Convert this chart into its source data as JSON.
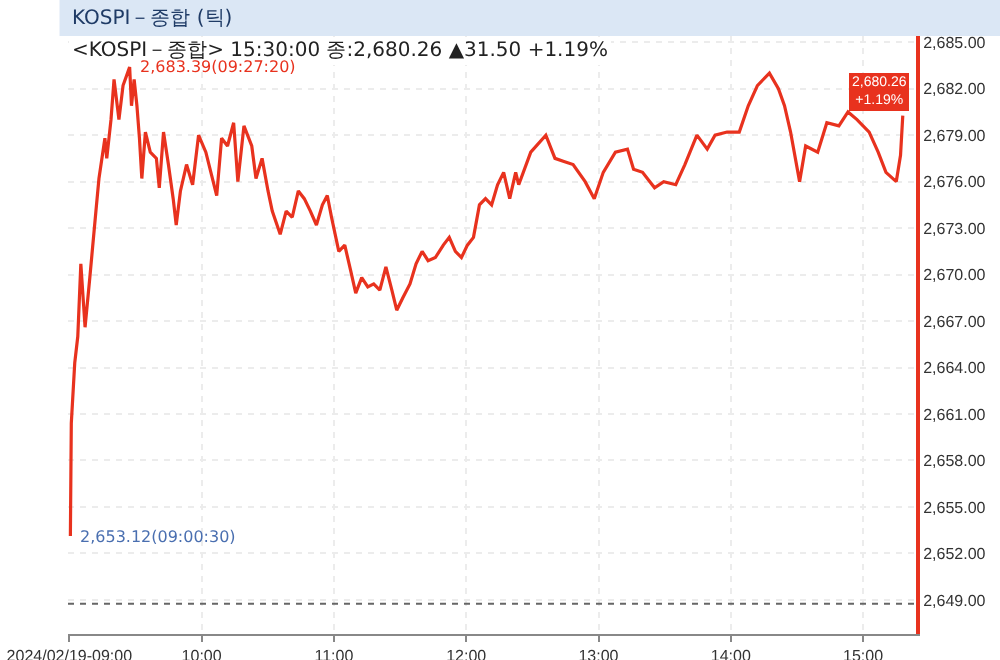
{
  "chart_data": {
    "type": "line",
    "title": "KOSPI－종합 (틱)",
    "subtitle": "<KOSPI－종합> 15:30:00 종:2,680.26 ▲31.50 +1.19%",
    "xlim": [
      8.99,
      15.4
    ],
    "ylim": [
      2646.8,
      2685.4
    ],
    "xticks": [
      {
        "value": 9,
        "label": "2024/02/19-09:00"
      },
      {
        "value": 10,
        "label": "10:00"
      },
      {
        "value": 11,
        "label": "11:00"
      },
      {
        "value": 12,
        "label": "12:00"
      },
      {
        "value": 13,
        "label": "13:00"
      },
      {
        "value": 14,
        "label": "14:00"
      },
      {
        "value": 15,
        "label": "15:00"
      }
    ],
    "yticks": [
      {
        "value": 2649,
        "label": "2,649.00"
      },
      {
        "value": 2652,
        "label": "2,652.00"
      },
      {
        "value": 2655,
        "label": "2,655.00"
      },
      {
        "value": 2658,
        "label": "2,658.00"
      },
      {
        "value": 2661,
        "label": "2,661.00"
      },
      {
        "value": 2664,
        "label": "2,664.00"
      },
      {
        "value": 2667,
        "label": "2,667.00"
      },
      {
        "value": 2670,
        "label": "2,670.00"
      },
      {
        "value": 2673,
        "label": "2,673.00"
      },
      {
        "value": 2676,
        "label": "2,676.00"
      },
      {
        "value": 2679,
        "label": "2,679.00"
      },
      {
        "value": 2682,
        "label": "2,682.00"
      },
      {
        "value": 2685,
        "label": "2,685.00"
      }
    ],
    "grid": true,
    "marker": "none",
    "line_style": "solid",
    "ref_lines": [
      {
        "axis": "y",
        "value": 2648.76,
        "line_style": "dotted",
        "color": "#666666"
      }
    ],
    "annotations": [
      {
        "text": "2,683.39(09:27:20)",
        "x": 9.456,
        "y": 2683.39
      },
      {
        "text": "2,653.12(09:00:30)",
        "x": 9.008,
        "y": 2653.12
      },
      "2,680.26\n+1.19%"
    ],
    "series": [
      {
        "color": "#e8321e",
        "x": [
          9.008,
          9.015,
          9.041,
          9.064,
          9.087,
          9.119,
          9.155,
          9.201,
          9.224,
          9.269,
          9.283,
          9.315,
          9.338,
          9.375,
          9.406,
          9.456,
          9.47,
          9.49,
          9.511,
          9.53,
          9.548,
          9.575,
          9.612,
          9.658,
          9.68,
          9.712,
          9.749,
          9.785,
          9.808,
          9.84,
          9.886,
          9.932,
          9.977,
          10.032,
          10.114,
          10.151,
          10.196,
          10.242,
          10.274,
          10.32,
          10.379,
          10.411,
          10.457,
          10.502,
          10.534,
          10.594,
          10.639,
          10.685,
          10.731,
          10.776,
          10.822,
          10.868,
          10.913,
          10.95,
          10.982,
          11.037,
          11.082,
          11.128,
          11.165,
          11.21,
          11.256,
          11.301,
          11.347,
          11.393,
          11.438,
          11.475,
          11.521,
          11.575,
          11.621,
          11.667,
          11.712,
          11.767,
          11.827,
          11.872,
          11.918,
          11.964,
          12.009,
          12.055,
          12.1,
          12.146,
          12.192,
          12.237,
          12.283,
          12.329,
          12.374,
          12.397,
          12.488,
          12.602,
          12.671,
          12.739,
          12.808,
          12.899,
          12.968,
          13.036,
          13.128,
          13.219,
          13.265,
          13.333,
          13.424,
          13.493,
          13.584,
          13.653,
          13.744,
          13.822,
          13.881,
          13.972,
          14.064,
          14.132,
          14.201,
          14.292,
          14.36,
          14.406,
          14.452,
          14.52,
          14.566,
          14.657,
          14.726,
          14.817,
          14.886,
          14.954,
          15.046,
          15.114,
          15.173,
          15.251,
          15.283,
          15.3
        ],
        "values": [
          2653.12,
          2660.4,
          2664.3,
          2666.0,
          2670.7,
          2666.6,
          2669.8,
          2674.1,
          2676.2,
          2678.8,
          2677.5,
          2680.0,
          2682.6,
          2680.0,
          2682.2,
          2683.39,
          2680.9,
          2682.6,
          2680.9,
          2678.8,
          2676.2,
          2679.2,
          2677.9,
          2677.5,
          2675.6,
          2679.2,
          2677.1,
          2674.9,
          2673.2,
          2675.4,
          2677.1,
          2675.8,
          2679.0,
          2677.9,
          2675.1,
          2678.8,
          2678.3,
          2679.8,
          2676.0,
          2679.6,
          2678.3,
          2676.2,
          2677.5,
          2675.4,
          2674.1,
          2672.6,
          2674.1,
          2673.7,
          2675.4,
          2674.9,
          2674.1,
          2673.2,
          2674.5,
          2675.1,
          2673.7,
          2671.5,
          2671.9,
          2670.2,
          2668.8,
          2669.8,
          2669.2,
          2669.4,
          2669.0,
          2670.5,
          2669.0,
          2667.7,
          2668.5,
          2669.4,
          2670.7,
          2671.5,
          2670.9,
          2671.1,
          2671.9,
          2672.4,
          2671.5,
          2671.1,
          2671.9,
          2672.4,
          2674.5,
          2674.9,
          2674.5,
          2675.8,
          2676.6,
          2674.9,
          2676.6,
          2675.8,
          2677.9,
          2679.0,
          2677.5,
          2677.3,
          2677.1,
          2676.0,
          2674.9,
          2676.6,
          2677.9,
          2678.1,
          2676.8,
          2676.6,
          2675.6,
          2676.0,
          2675.8,
          2677.1,
          2679.0,
          2678.1,
          2679.0,
          2679.2,
          2679.2,
          2680.9,
          2682.2,
          2683.0,
          2682.0,
          2680.9,
          2679.2,
          2676.0,
          2678.3,
          2677.9,
          2679.8,
          2679.6,
          2680.5,
          2680.0,
          2679.2,
          2677.9,
          2676.6,
          2676.0,
          2677.7,
          2680.26
        ]
      }
    ]
  }
}
